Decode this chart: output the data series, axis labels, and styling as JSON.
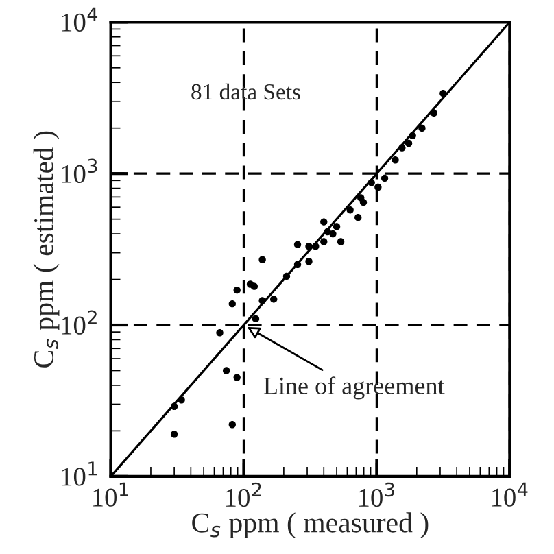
{
  "chart_data": {
    "type": "scatter",
    "xlabel": "C$_{s}$ ppm ( measured )",
    "ylabel": "C$_{s}$ ppm ( estimated )",
    "log": "xy",
    "grid": true,
    "xlim": [
      10,
      10000
    ],
    "ylim": [
      10,
      10000
    ],
    "xticks": [
      {
        "value": 10,
        "label": "10$^{1}$"
      },
      {
        "value": 100,
        "label": "10$^{2}$"
      },
      {
        "value": 1000,
        "label": "10$^{3}$"
      },
      {
        "value": 10000,
        "label": "10$^{4}$"
      }
    ],
    "yticks": [
      {
        "value": 10,
        "label": "10$^{1}$"
      },
      {
        "value": 100,
        "label": "10$^{2}$"
      },
      {
        "value": 1000,
        "label": "10$^{3}$"
      },
      {
        "value": 10000,
        "label": "10$^{4}$"
      }
    ],
    "series": [
      {
        "color": "#000000",
        "marker": "circle",
        "x": [
          30,
          34,
          30,
          66,
          74,
          89,
          82,
          82,
          89,
          112,
          120,
          138,
          123,
          138,
          168,
          210,
          254,
          254,
          309,
          309,
          347,
          400,
          400,
          427,
          468,
          537,
          500,
          631,
          724,
          759,
          794,
          912,
          1023,
          1148,
          1380,
          1550,
          1740,
          1860,
          2190,
          2690,
          3160
        ],
        "values": [
          29,
          32,
          19,
          89,
          50,
          45,
          22,
          138,
          170,
          186,
          180,
          270,
          110,
          145,
          148,
          210,
          251,
          340,
          263,
          331,
          331,
          355,
          480,
          413,
          400,
          355,
          447,
          575,
          513,
          692,
          646,
          871,
          813,
          933,
          1230,
          1480,
          1585,
          1780,
          1995,
          2510,
          3390
        ]
      },
      {
        "type": "line",
        "color": "#000000",
        "x": [
          10,
          10000
        ],
        "values": [
          10,
          10000
        ]
      }
    ],
    "annotations": [
      "81 data Sets",
      {
        "text": "Line of agreement",
        "x": 100,
        "y": 100
      }
    ]
  }
}
